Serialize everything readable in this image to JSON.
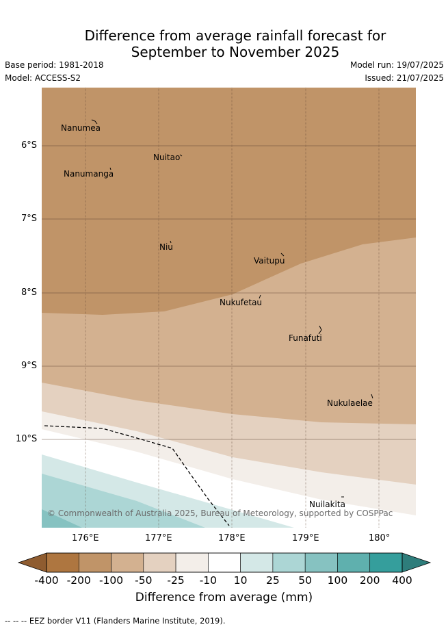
{
  "title_line1": "Difference from average rainfall forecast for",
  "title_line2": "September to November 2025",
  "meta": {
    "base_period": "Base period: 1981-2018",
    "model": "Model: ACCESS-S2",
    "model_run": "Model run: 19/07/2025",
    "issued": "Issued: 21/07/2025"
  },
  "axes": {
    "lat_ticks": [
      "6°S",
      "7°S",
      "8°S",
      "9°S",
      "10°S"
    ],
    "lon_ticks": [
      "176°E",
      "177°E",
      "178°E",
      "179°E",
      "180°"
    ]
  },
  "places": {
    "nanumea": "Nanumea",
    "nuitao": "Nuitao",
    "nanumanga": "Nanumanga",
    "niu": "Niu",
    "vaitupu": "Vaitupu",
    "nukufetau": "Nukufetau",
    "funafuti": "Funafuti",
    "nukulaelae": "Nukulaelae",
    "nuilakita": "Nuilakita"
  },
  "copyright": "© Commonwealth of Australia 2025, Bureau of Meteorology, supported by COSPPac",
  "colorbar": {
    "labels": [
      "-400",
      "-200",
      "-100",
      "-50",
      "-25",
      "-10",
      "10",
      "25",
      "50",
      "100",
      "200",
      "400"
    ],
    "colors": [
      "#ae7640",
      "#c09468",
      "#d3b190",
      "#e4d1c0",
      "#f3eee9",
      "#ffffff",
      "#d4e8e7",
      "#acd6d5",
      "#86c2c1",
      "#5fb0ae",
      "#359e9c"
    ],
    "under_color": "#8f5c30",
    "over_color": "#2e7d7b",
    "title": "Difference from average (mm)"
  },
  "footnote": "--  --  -- EEZ border V11 (Flanders Marine Institute, 2019)."
}
